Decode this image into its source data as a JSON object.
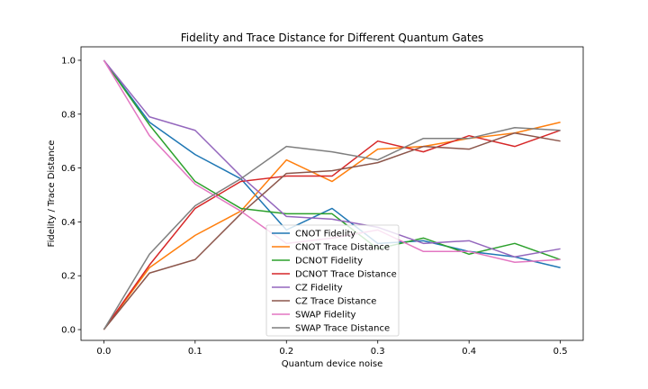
{
  "chart_data": {
    "type": "line",
    "title": "Fidelity and Trace Distance for Different Quantum Gates",
    "xlabel": "Quantum device noise",
    "ylabel": "Fidelity / Trace Distance",
    "xlim": [
      -0.025,
      0.525
    ],
    "ylim": [
      -0.04,
      1.05
    ],
    "x_ticks": [
      0.0,
      0.1,
      0.2,
      0.3,
      0.4,
      0.5
    ],
    "x_tick_labels": [
      "0.0",
      "0.1",
      "0.2",
      "0.3",
      "0.4",
      "0.5"
    ],
    "y_ticks": [
      0.0,
      0.2,
      0.4,
      0.6,
      0.8,
      1.0
    ],
    "y_tick_labels": [
      "0.0",
      "0.2",
      "0.4",
      "0.6",
      "0.8",
      "1.0"
    ],
    "grid": false,
    "legend_position": "lower center",
    "x": [
      0.0,
      0.05,
      0.1,
      0.15,
      0.2,
      0.25,
      0.3,
      0.35,
      0.4,
      0.45,
      0.5
    ],
    "series": [
      {
        "name": "CNOT Fidelity",
        "color": "#1f77b4",
        "values": [
          1.0,
          0.77,
          0.65,
          0.56,
          0.37,
          0.45,
          0.32,
          0.33,
          0.29,
          0.27,
          0.23
        ]
      },
      {
        "name": "CNOT Trace Distance",
        "color": "#ff7f0e",
        "values": [
          0.0,
          0.23,
          0.35,
          0.44,
          0.63,
          0.55,
          0.67,
          0.68,
          0.71,
          0.73,
          0.77
        ]
      },
      {
        "name": "DCNOT Fidelity",
        "color": "#2ca02c",
        "values": [
          1.0,
          0.76,
          0.55,
          0.45,
          0.43,
          0.43,
          0.3,
          0.34,
          0.28,
          0.32,
          0.26
        ]
      },
      {
        "name": "DCNOT Trace Distance",
        "color": "#d62728",
        "values": [
          0.0,
          0.24,
          0.45,
          0.55,
          0.57,
          0.57,
          0.7,
          0.66,
          0.72,
          0.68,
          0.74
        ]
      },
      {
        "name": "CZ Fidelity",
        "color": "#9467bd",
        "values": [
          1.0,
          0.79,
          0.74,
          0.57,
          0.42,
          0.41,
          0.38,
          0.32,
          0.33,
          0.27,
          0.3
        ]
      },
      {
        "name": "CZ Trace Distance",
        "color": "#8c564b",
        "values": [
          0.0,
          0.21,
          0.26,
          0.43,
          0.58,
          0.59,
          0.62,
          0.68,
          0.67,
          0.73,
          0.7
        ]
      },
      {
        "name": "SWAP Fidelity",
        "color": "#e377c2",
        "values": [
          1.0,
          0.72,
          0.54,
          0.44,
          0.32,
          0.34,
          0.37,
          0.29,
          0.29,
          0.25,
          0.26
        ]
      },
      {
        "name": "SWAP Trace Distance",
        "color": "#7f7f7f",
        "values": [
          0.0,
          0.28,
          0.46,
          0.56,
          0.68,
          0.66,
          0.63,
          0.71,
          0.71,
          0.75,
          0.74
        ]
      }
    ]
  }
}
